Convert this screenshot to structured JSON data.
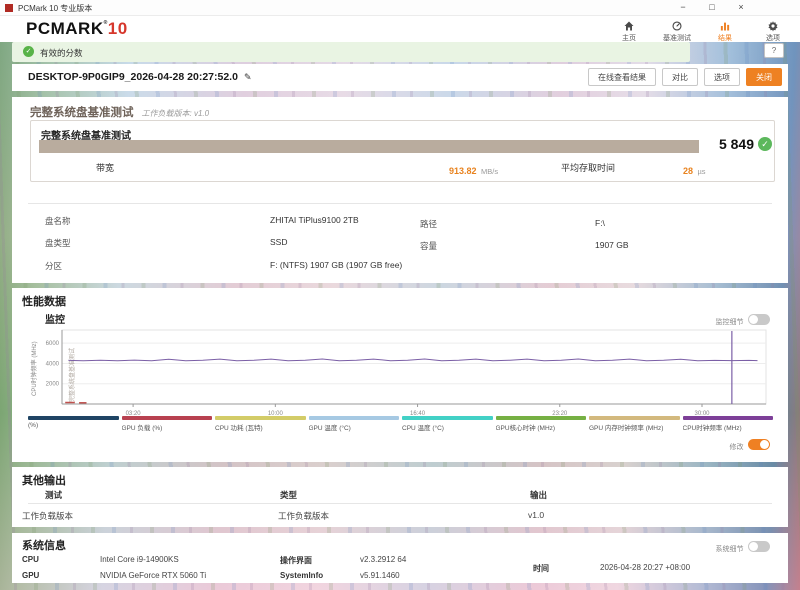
{
  "titlebar": {
    "title": "PCMark 10 专业版本",
    "minimize": "−",
    "maximize": "□",
    "close": "×"
  },
  "header": {
    "logo_text": "PCMARK",
    "logo_reg": "®",
    "logo_number": "10",
    "accent_color": "#ef8023",
    "logo_number_color": "#d6372c",
    "nav": [
      {
        "icon": "home",
        "label": "主页",
        "active": false
      },
      {
        "icon": "gauge",
        "label": "基准测试",
        "active": false
      },
      {
        "icon": "results",
        "label": "结果",
        "active": true
      },
      {
        "icon": "gear",
        "label": "选项",
        "active": false
      }
    ]
  },
  "banner": {
    "check_icon": "✓",
    "text": "有效的分数",
    "help": "?"
  },
  "result_header": {
    "title": "DESKTOP-9P0GIP9_2026-04-28 20:27:52.0",
    "edit_icon": "✎",
    "buttons": [
      "在线查看结果",
      "对比",
      "选项"
    ],
    "close_button": "关闭"
  },
  "benchmark": {
    "section_title": "完整系统盘基准测试",
    "workload_version": "工作负载版本: v1.0",
    "card_title": "完整系统盘基准测试",
    "score": "5 849",
    "score_check": "✓",
    "score_bar_color": "#b9ac9e",
    "bandwidth_label": "带宽",
    "bandwidth_value": "913.82",
    "bandwidth_unit": "MB/s",
    "access_label": "平均存取时间",
    "access_value": "28",
    "access_unit": "µs",
    "disk": {
      "name_label": "盘名称",
      "name_value": "ZHITAI TiPlus9100 2TB",
      "type_label": "盘类型",
      "type_value": "SSD",
      "partition_label": "分区",
      "partition_value": "F: (NTFS) 1907 GB (1907 GB free)",
      "path_label": "路径",
      "path_value": "F:\\",
      "capacity_label": "容量",
      "capacity_value": "1907 GB"
    }
  },
  "performance": {
    "title": "性能数据",
    "monitor_label": "监控",
    "monitor_toggle_label": "监控细节",
    "monitor_toggle_on": false,
    "edit_toggle_label": "修改",
    "edit_toggle_on": true,
    "chart_data": {
      "type": "line",
      "ylabel": "CPU时钟频率 (MHz)",
      "annotation": "完整系统盘基准测试",
      "xticks": [
        "03:20",
        "10:00",
        "16:40",
        "23:20",
        "30:00"
      ],
      "xtick_minutes": [
        3.333,
        10,
        16.667,
        23.333,
        30
      ],
      "yticks": [
        2000,
        4000,
        6000
      ],
      "ylim": [
        0,
        7300
      ],
      "xlim": [
        0,
        33
      ],
      "grid": true,
      "legend_position": "bottom",
      "series": [
        {
          "name": "CPU时钟频率 (MHz)",
          "color": "#7b5fa6",
          "points": [
            [
              0.3,
              4300
            ],
            [
              1,
              4260
            ],
            [
              1.8,
              4310
            ],
            [
              2.6,
              4260
            ],
            [
              3.4,
              4330
            ],
            [
              4.2,
              4260
            ],
            [
              5,
              4420
            ],
            [
              5.8,
              4270
            ],
            [
              6.6,
              4310
            ],
            [
              7.4,
              4430
            ],
            [
              8.2,
              4260
            ],
            [
              9,
              4320
            ],
            [
              9.8,
              4430
            ],
            [
              10.6,
              4270
            ],
            [
              11.4,
              4310
            ],
            [
              12.2,
              4440
            ],
            [
              13,
              4260
            ],
            [
              13.8,
              4320
            ],
            [
              14.6,
              4430
            ],
            [
              15.4,
              4270
            ],
            [
              16.2,
              4310
            ],
            [
              17,
              4440
            ],
            [
              17.8,
              4270
            ],
            [
              18.6,
              4310
            ],
            [
              19.4,
              4430
            ],
            [
              20.2,
              4260
            ],
            [
              21,
              4320
            ],
            [
              21.8,
              4430
            ],
            [
              22.6,
              4270
            ],
            [
              23.4,
              4310
            ],
            [
              24.2,
              4440
            ],
            [
              25,
              4260
            ],
            [
              25.8,
              4320
            ],
            [
              26.6,
              4430
            ],
            [
              27.4,
              4270
            ],
            [
              28.2,
              4310
            ],
            [
              29,
              4420
            ],
            [
              29.8,
              4270
            ],
            [
              30.6,
              4300
            ],
            [
              31.4,
              4280
            ],
            [
              32.2,
              4300
            ],
            [
              32.6,
              4280
            ]
          ]
        },
        {
          "name": "GPU 负载 (%)",
          "color": "#c0504d",
          "segments": [
            [
              [
                0.15,
                150
              ],
              [
                0.6,
                150
              ]
            ],
            [
              [
                0.8,
                120
              ],
              [
                1.15,
                120
              ]
            ]
          ]
        },
        {
          "name": "spike",
          "type": "vline",
          "x": 31.4,
          "y1": 0,
          "y2": 7200,
          "color": "#7b5fa6"
        }
      ],
      "legend": [
        {
          "label": "(%)",
          "color": "#1f4464"
        },
        {
          "label": "GPU 负载 (%)",
          "color": "#b84150"
        },
        {
          "label": "CPU 功耗 (瓦特)",
          "color": "#d3cc68"
        },
        {
          "label": "GPU 温度 (°C)",
          "color": "#a6c9e3"
        },
        {
          "label": "CPU 温度 (°C)",
          "color": "#42d1c6"
        },
        {
          "label": "GPU核心时钟 (MHz)",
          "color": "#76b043"
        },
        {
          "label": "GPU 内存时钟频率 (MHz)",
          "color": "#d3b97e"
        },
        {
          "label": "CPU时钟频率 (MHz)",
          "color": "#7d3f98"
        }
      ]
    }
  },
  "other_output": {
    "title": "其他输出",
    "headers": [
      "测试",
      "类型",
      "输出"
    ],
    "rows": [
      [
        "工作负载版本",
        "工作负载版本",
        "v1.0"
      ]
    ]
  },
  "system_info": {
    "title": "系统信息",
    "toggle_label": "系统细节",
    "toggle_on": false,
    "cpu_label": "CPU",
    "cpu_value": "Intel Core i9-14900KS",
    "gpu_label": "GPU",
    "gpu_value": "NVIDIA GeForce RTX 5060 Ti",
    "ui_label": "操作界面",
    "ui_value": "v2.3.2912 64",
    "si_label": "SystemInfo",
    "si_value": "v5.91.1460",
    "time_label": "时间",
    "time_value": "2026-04-28 20:27 +08:00"
  }
}
